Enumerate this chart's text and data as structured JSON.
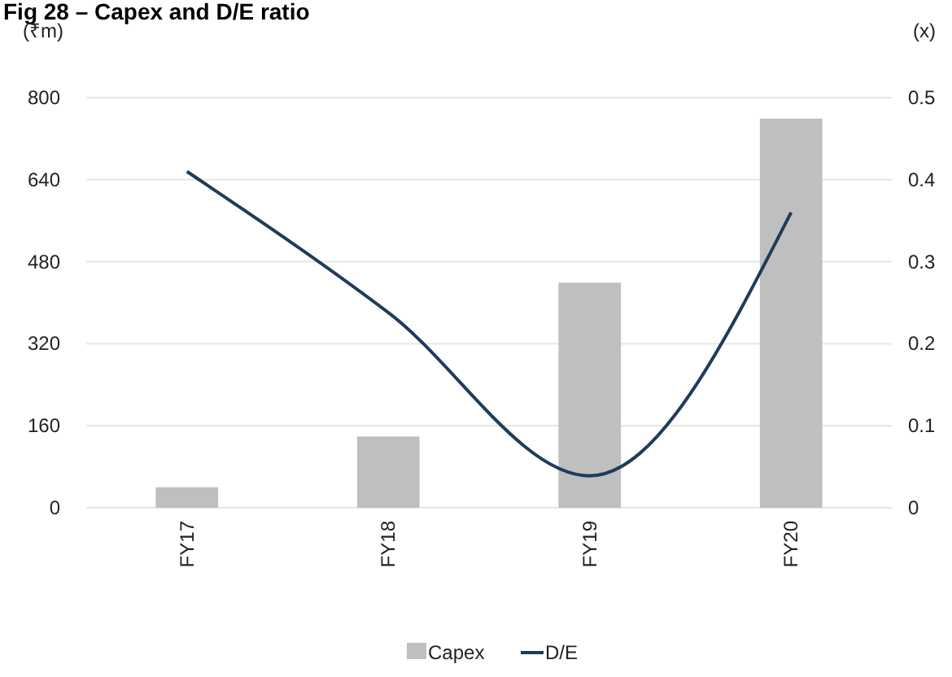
{
  "chart_data": {
    "type": "bar",
    "title": "Fig 28 – Capex and D/E ratio",
    "ylabel": "(₹m)",
    "y2label": "(x)",
    "categories": [
      "FY17",
      "FY18",
      "FY19",
      "FY20"
    ],
    "series": [
      {
        "name": "Capex",
        "type": "bar",
        "color": "#bfbfbf",
        "values": [
          40,
          139,
          439,
          759
        ]
      },
      {
        "name": "D/E",
        "type": "line",
        "axis": "y2",
        "color": "#1f3b5c",
        "values": [
          0.41,
          0.238,
          0.039,
          0.36
        ]
      }
    ],
    "ylim": [
      0,
      800
    ],
    "yticks": [
      0,
      160,
      320,
      480,
      640,
      800
    ],
    "y2lim": [
      0,
      0.5
    ],
    "y2ticks": [
      0,
      0.1,
      0.2,
      0.3,
      0.4,
      0.5
    ],
    "grid": "y",
    "legend": "bottom",
    "marker": "none",
    "line_style": "solid"
  }
}
